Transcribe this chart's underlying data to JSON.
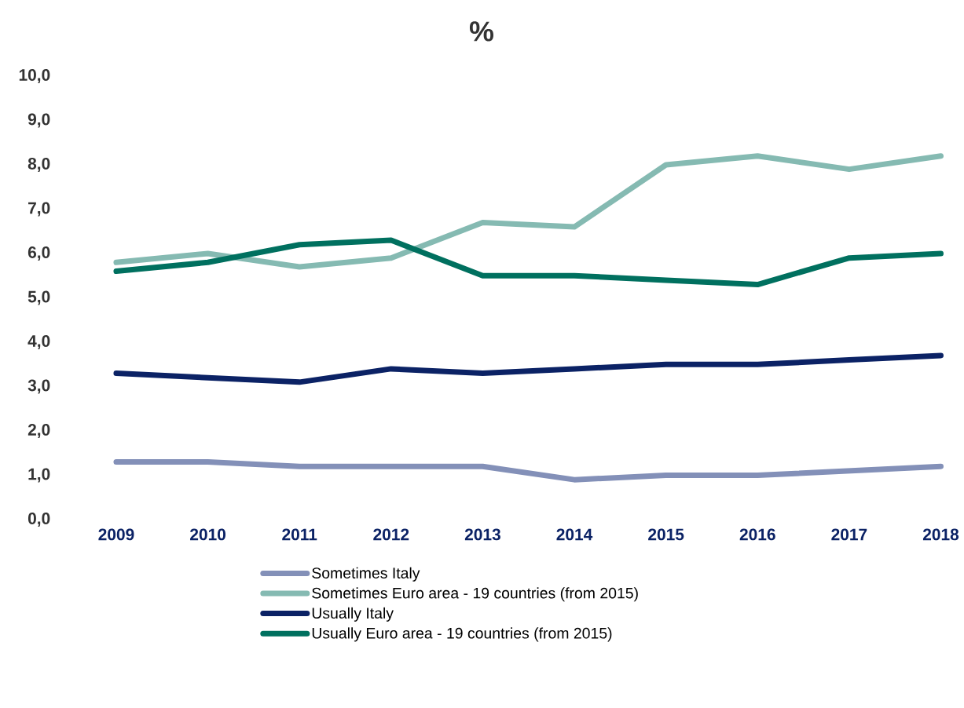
{
  "chart_data": {
    "type": "line",
    "title": "%",
    "categories": [
      "2009",
      "2010",
      "2011",
      "2012",
      "2013",
      "2014",
      "2015",
      "2016",
      "2017",
      "2018"
    ],
    "series": [
      {
        "name": "Sometimes Italy",
        "color": "#8390b8",
        "values": [
          1.3,
          1.3,
          1.2,
          1.2,
          1.2,
          0.9,
          1.0,
          1.0,
          1.1,
          1.2
        ]
      },
      {
        "name": "Sometimes Euro area - 19 countries  (from 2015)",
        "color": "#85bab2",
        "values": [
          5.8,
          6.0,
          5.7,
          5.9,
          6.7,
          6.6,
          8.0,
          8.2,
          7.9,
          8.2
        ]
      },
      {
        "name": "Usually Italy",
        "color": "#0b2265",
        "values": [
          3.3,
          3.2,
          3.1,
          3.4,
          3.3,
          3.4,
          3.5,
          3.5,
          3.6,
          3.7
        ]
      },
      {
        "name": "Usually Euro area - 19 countries  (from 2015)",
        "color": "#00705f",
        "values": [
          5.6,
          5.8,
          6.2,
          6.3,
          5.5,
          5.5,
          5.4,
          5.3,
          5.9,
          6.0
        ]
      }
    ],
    "ylim": [
      0,
      10
    ],
    "yticks": [
      {
        "value": 0,
        "label": "0,0"
      },
      {
        "value": 1,
        "label": "1,0"
      },
      {
        "value": 2,
        "label": "2,0"
      },
      {
        "value": 3,
        "label": "3,0"
      },
      {
        "value": 4,
        "label": "4,0"
      },
      {
        "value": 5,
        "label": "5,0"
      },
      {
        "value": 6,
        "label": "6,0"
      },
      {
        "value": 7,
        "label": "7,0"
      },
      {
        "value": 8,
        "label": "8,0"
      },
      {
        "value": 9,
        "label": "9,0"
      },
      {
        "value": 10,
        "label": "10,0"
      }
    ],
    "grid": false,
    "legend": "bottom",
    "marker": "none",
    "line_style": "solid"
  }
}
